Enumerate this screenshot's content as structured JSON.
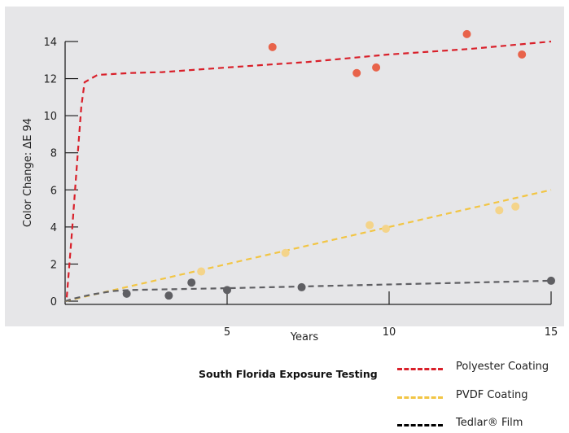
{
  "chart_data": {
    "type": "scatter",
    "title": "South Florida Exposure Testing",
    "xlabel": "Years",
    "ylabel": "Color Change:  ΔE 94",
    "xlim": [
      0,
      15
    ],
    "ylim": [
      0,
      14
    ],
    "x_ticks": [
      5,
      10,
      15
    ],
    "y_ticks": [
      0,
      2,
      4,
      6,
      8,
      10,
      12,
      14
    ],
    "grid": false,
    "background": "#e6e6e8",
    "series": [
      {
        "name": "Polyester Coating",
        "color": "#d9202a",
        "marker_color": "#e8634a",
        "points": {
          "x": [
            6.4,
            9.0,
            9.6,
            12.4,
            14.1
          ],
          "y": [
            13.7,
            12.3,
            12.6,
            14.4,
            13.3
          ]
        },
        "trend": {
          "x": [
            0.05,
            0.2,
            0.35,
            0.5,
            0.6,
            1.0,
            1.5,
            2.0,
            3.0,
            5.0,
            7.5,
            10.0,
            12.5,
            15.0
          ],
          "y": [
            0.2,
            3.5,
            7.0,
            10.5,
            11.8,
            12.2,
            12.25,
            12.3,
            12.35,
            12.6,
            12.9,
            13.3,
            13.6,
            14.0
          ]
        }
      },
      {
        "name": "PVDF Coating",
        "color": "#f2c544",
        "marker_color": "#f4d48a",
        "points": {
          "x": [
            4.2,
            6.8,
            9.4,
            9.9,
            13.4,
            13.9
          ],
          "y": [
            1.6,
            2.6,
            4.1,
            3.9,
            4.9,
            5.1
          ]
        },
        "trend": {
          "x": [
            0.0,
            15.0
          ],
          "y": [
            0.0,
            6.0
          ]
        }
      },
      {
        "name": "Tedlar® Film",
        "color": "#5f5f63",
        "marker_color": "#5f5f63",
        "points": {
          "x": [
            1.9,
            3.2,
            3.9,
            5.0,
            7.3,
            15.0
          ],
          "y": [
            0.4,
            0.3,
            1.0,
            0.6,
            0.75,
            1.1
          ]
        },
        "trend": {
          "x": [
            0.0,
            0.3,
            0.8,
            1.5,
            2.0,
            5.0,
            10.0,
            15.0
          ],
          "y": [
            0.0,
            0.15,
            0.35,
            0.55,
            0.6,
            0.7,
            0.9,
            1.1
          ]
        }
      }
    ]
  },
  "legend": {
    "caption": "South Florida Exposure Testing",
    "items": [
      {
        "label": "Polyester Coating",
        "color": "#d9202a"
      },
      {
        "label": "PVDF Coating",
        "color": "#f2c544"
      },
      {
        "label": "Tedlar® Film",
        "color": "#000000"
      }
    ]
  }
}
